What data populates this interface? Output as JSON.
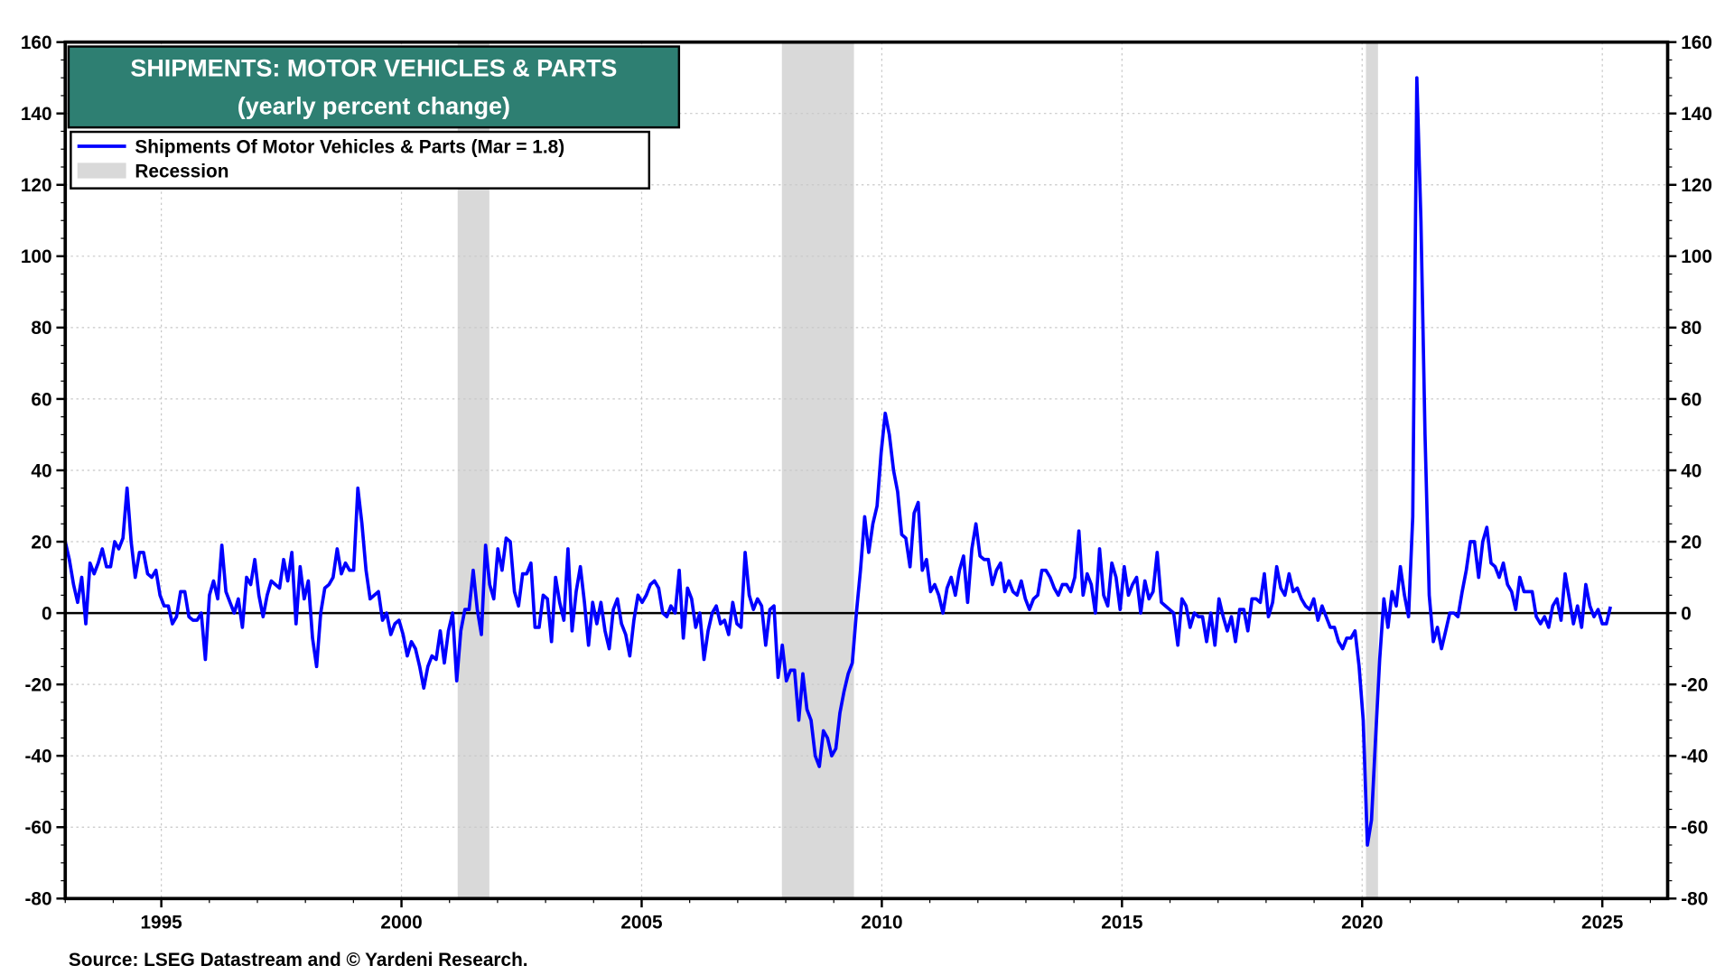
{
  "chart_data": {
    "type": "line",
    "title": "SHIPMENTS: MOTOR VEHICLES & PARTS",
    "subtitle": "(yearly percent change)",
    "source": "Source: LSEG Datastream and © Yardeni Research.",
    "legend": {
      "placement": "top-left",
      "entries": [
        {
          "label": "Shipments Of Motor Vehicles & Parts (Mar = 1.8)",
          "color": "#0000ff",
          "kind": "line"
        },
        {
          "label": "Recession",
          "color": "#d9d9d9",
          "kind": "area"
        }
      ]
    },
    "xlim": [
      1993.0,
      2026.36
    ],
    "ylim": [
      -80,
      160
    ],
    "yticks": [
      "160",
      "140",
      "120",
      "100",
      "80",
      "60",
      "40",
      "20",
      "0",
      "-20",
      "-40",
      "-60",
      "-80"
    ],
    "ytick_values": [
      160,
      140,
      120,
      100,
      80,
      60,
      40,
      20,
      0,
      -20,
      -40,
      -60,
      -80
    ],
    "xticks": [
      "1995",
      "2000",
      "2005",
      "2010",
      "2015",
      "2020",
      "2025"
    ],
    "xtick_values": [
      1995,
      2000,
      2005,
      2010,
      2015,
      2020,
      2025
    ],
    "grid": true,
    "recessions": [
      [
        2001.17,
        2001.83
      ],
      [
        2007.92,
        2009.42
      ],
      [
        2020.08,
        2020.33
      ]
    ],
    "series": [
      {
        "name": "Shipments Of Motor Vehicles & Parts",
        "color": "#0000ff",
        "x_start": 1993.0,
        "x_end": 2025.17,
        "values": [
          20,
          15,
          8,
          3,
          10,
          -3,
          14,
          11,
          14,
          18,
          13,
          13,
          20,
          18,
          21,
          35,
          20,
          10,
          17,
          17,
          11,
          10,
          12,
          5,
          2,
          2,
          -3,
          -1,
          6,
          6,
          -1,
          -2,
          -2,
          0,
          -13,
          5,
          9,
          4,
          19,
          6,
          3,
          0,
          4,
          -4,
          10,
          8,
          15,
          5,
          -1,
          5,
          9,
          8,
          7,
          15,
          9,
          17,
          -3,
          13,
          4,
          9,
          -7,
          -15,
          0,
          7,
          8,
          10,
          18,
          11,
          14,
          12,
          12,
          35,
          25,
          12,
          4,
          5,
          6,
          -2,
          0,
          -6,
          -3,
          -2,
          -6,
          -12,
          -8,
          -10,
          -15,
          -21,
          -15,
          -12,
          -13,
          -5,
          -14,
          -5,
          0,
          -19,
          -5,
          1,
          1,
          12,
          1,
          -6,
          19,
          8,
          4,
          18,
          12,
          21,
          20,
          6,
          2,
          11,
          11,
          14,
          -4,
          -4,
          5,
          4,
          -8,
          10,
          3,
          -2,
          18,
          -5,
          6,
          13,
          3,
          -9,
          3,
          -3,
          3,
          -5,
          -10,
          1,
          4,
          -3,
          -6,
          -12,
          -2,
          5,
          3,
          5,
          8,
          9,
          7,
          0,
          -1,
          2,
          0,
          12,
          -7,
          7,
          4,
          -4,
          0,
          -13,
          -5,
          0,
          2,
          -3,
          -2,
          -6,
          3,
          -3,
          -4,
          17,
          5,
          1,
          4,
          2,
          -9,
          1,
          2,
          -18,
          -9,
          -19,
          -16,
          -16,
          -30,
          -17,
          -27,
          -30,
          -40,
          -43,
          -33,
          -35,
          -40,
          -38,
          -28,
          -22,
          -17,
          -14,
          0,
          12,
          27,
          17,
          25,
          30,
          45,
          56,
          50,
          40,
          34,
          22,
          21,
          13,
          28,
          31,
          12,
          15,
          6,
          8,
          5,
          0,
          7,
          10,
          5,
          12,
          16,
          3,
          18,
          25,
          16,
          15,
          15,
          8,
          12,
          14,
          6,
          9,
          6,
          5,
          9,
          4,
          1,
          4,
          5,
          12,
          12,
          10,
          7,
          5,
          8,
          8,
          6,
          10,
          23,
          5,
          11,
          8,
          0,
          18,
          5,
          2,
          14,
          10,
          1,
          13,
          5,
          8,
          10,
          0,
          9,
          4,
          6,
          17,
          3,
          2,
          1,
          0,
          -9,
          4,
          2,
          -4,
          0,
          -1,
          -1,
          -8,
          0,
          -9,
          4,
          -1,
          -5,
          -1,
          -8,
          1,
          1,
          -5,
          4,
          4,
          3,
          11,
          -1,
          3,
          13,
          7,
          5,
          11,
          6,
          7,
          4,
          2,
          1,
          4,
          -2,
          2,
          -1,
          -4,
          -4,
          -8,
          -10,
          -7,
          -7,
          -5,
          -15,
          -30,
          -65,
          -58,
          -35,
          -13,
          4,
          -4,
          6,
          2,
          13,
          5,
          -1,
          27,
          150,
          110,
          50,
          5,
          -8,
          -4,
          -10,
          -5,
          0,
          0,
          -1,
          6,
          12,
          20,
          20,
          10,
          20,
          24,
          14,
          13,
          10,
          14,
          8,
          6,
          1,
          10,
          6,
          6,
          6,
          -1,
          -3,
          -1,
          -4,
          2,
          4,
          -2,
          11,
          4,
          -3,
          2,
          -4,
          8,
          2,
          -1,
          1,
          -3,
          -3,
          1.8
        ]
      }
    ]
  }
}
